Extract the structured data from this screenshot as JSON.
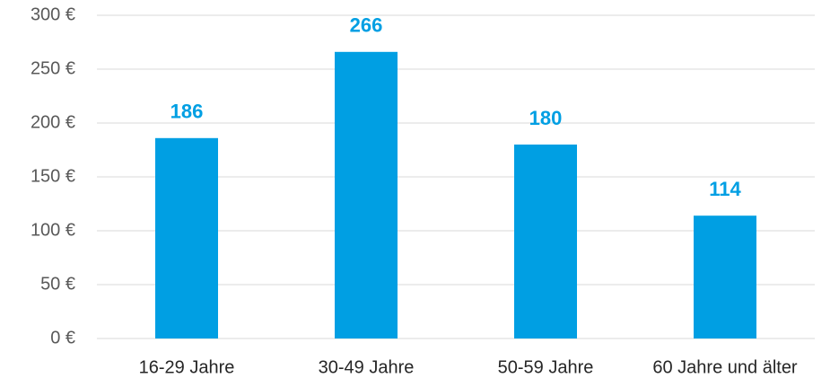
{
  "chart_data": {
    "type": "bar",
    "categories": [
      "16-29 Jahre",
      "30-49 Jahre",
      "50-59 Jahre",
      "60 Jahre und älter"
    ],
    "values": [
      186,
      266,
      180,
      114
    ],
    "color": "#009fe3",
    "ylim": [
      0,
      300
    ],
    "yticks": [
      {
        "value": 0,
        "label": "0 €"
      },
      {
        "value": 50,
        "label": "50 €"
      },
      {
        "value": 100,
        "label": "100 €"
      },
      {
        "value": 150,
        "label": "150 €"
      },
      {
        "value": 200,
        "label": "200 €"
      },
      {
        "value": 250,
        "label": "250 €"
      },
      {
        "value": 300,
        "label": "300 €"
      }
    ],
    "grid": true
  }
}
